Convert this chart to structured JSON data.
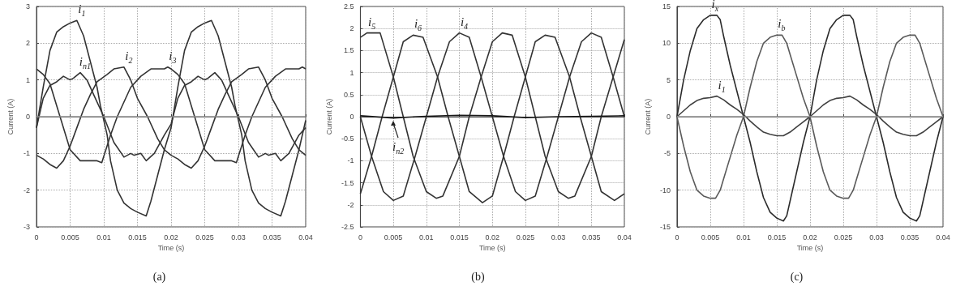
{
  "chart_data": [
    {
      "type": "line",
      "xlabel": "Time (s)",
      "ylabel": "Current (A)",
      "xlim": [
        0,
        0.04
      ],
      "xticks": [
        0,
        0.005,
        0.01,
        0.015,
        0.02,
        0.025,
        0.03,
        0.035,
        0.04
      ],
      "ylim": [
        -3,
        3
      ],
      "yticks": [
        -3,
        -2,
        -1,
        0,
        1,
        2,
        3
      ],
      "grid": true,
      "ref_lines": [
        {
          "axis": "y",
          "value": 0,
          "color": "#8c8c8c"
        }
      ],
      "series": [
        {
          "name": "i$_{1}$",
          "color": "#333333",
          "x": [
            0,
            0.001,
            0.002,
            0.003,
            0.004,
            0.005,
            0.006,
            0.007,
            0.008,
            0.009,
            0.0095,
            0.0105,
            0.011,
            0.012,
            0.013,
            0.014,
            0.015,
            0.0163,
            0.017,
            0.018,
            0.019,
            0.02,
            0.021,
            0.022,
            0.023,
            0.024,
            0.025,
            0.026,
            0.027,
            0.028,
            0.029,
            0.0295,
            0.0305,
            0.031,
            0.032,
            0.033,
            0.034,
            0.035,
            0.0363,
            0.037,
            0.038,
            0.039,
            0.04
          ],
          "values": [
            -0.3,
            0.8,
            1.8,
            2.3,
            2.45,
            2.55,
            2.62,
            2.2,
            1.5,
            0.8,
            0.3,
            -0.5,
            -1.2,
            -2.0,
            -2.35,
            -2.5,
            -2.6,
            -2.7,
            -2.3,
            -1.6,
            -0.9,
            -0.3,
            0.8,
            1.8,
            2.3,
            2.45,
            2.55,
            2.62,
            2.2,
            1.5,
            0.8,
            0.3,
            -0.5,
            -1.2,
            -2.0,
            -2.35,
            -2.5,
            -2.6,
            -2.7,
            -2.3,
            -1.6,
            -0.9,
            -0.1
          ]
        },
        {
          "name": "i$_{n1}$",
          "color": "#333333",
          "x": [
            0,
            0.001,
            0.002,
            0.003,
            0.004,
            0.005,
            0.0055,
            0.0065,
            0.0075,
            0.0085,
            0.01,
            0.0115,
            0.013,
            0.014,
            0.0145,
            0.0155,
            0.0163,
            0.0175,
            0.019,
            0.02,
            0.021,
            0.022,
            0.023,
            0.024,
            0.025,
            0.0255,
            0.0265,
            0.0275,
            0.0285,
            0.03,
            0.0315,
            0.033,
            0.034,
            0.0345,
            0.0355,
            0.0363,
            0.0375,
            0.039,
            0.04
          ],
          "values": [
            -0.3,
            0.5,
            0.85,
            0.95,
            1.1,
            1.0,
            1.05,
            1.2,
            1.0,
            0.6,
            0.0,
            -0.7,
            -1.1,
            -1.0,
            -1.05,
            -1.0,
            -1.2,
            -1.0,
            -0.5,
            -0.2,
            0.5,
            0.85,
            0.95,
            1.1,
            1.0,
            1.05,
            1.2,
            1.0,
            0.6,
            0.0,
            -0.7,
            -1.1,
            -1.0,
            -1.05,
            -1.0,
            -1.2,
            -1.0,
            -0.5,
            -0.3
          ]
        },
        {
          "name": "i$_{2}$",
          "color": "#333333",
          "x": [
            0,
            0.001,
            0.002,
            0.003,
            0.004,
            0.005,
            0.006,
            0.007,
            0.008,
            0.009,
            0.0105,
            0.0115,
            0.013,
            0.014,
            0.015,
            0.0165,
            0.018,
            0.019,
            0.02,
            0.021,
            0.022,
            0.023,
            0.024,
            0.025,
            0.026,
            0.027,
            0.028,
            0.029,
            0.0305,
            0.0315,
            0.033,
            0.034,
            0.035,
            0.0365,
            0.038,
            0.039,
            0.04
          ],
          "values": [
            -1.05,
            -1.15,
            -1.3,
            -1.4,
            -1.2,
            -0.8,
            -0.3,
            0.2,
            0.6,
            0.95,
            1.15,
            1.3,
            1.35,
            1.0,
            0.5,
            0.0,
            -0.6,
            -0.9,
            -1.05,
            -1.15,
            -1.3,
            -1.4,
            -1.2,
            -0.8,
            -0.3,
            0.2,
            0.6,
            0.95,
            1.15,
            1.3,
            1.35,
            1.0,
            0.5,
            0.0,
            -0.6,
            -0.9,
            -1.05
          ]
        },
        {
          "name": "i$_{3}$",
          "color": "#333333",
          "x": [
            0,
            0.001,
            0.002,
            0.0035,
            0.005,
            0.0065,
            0.008,
            0.009,
            0.0097,
            0.011,
            0.012,
            0.014,
            0.0155,
            0.017,
            0.019,
            0.0195,
            0.02,
            0.021,
            0.022,
            0.0235,
            0.025,
            0.0265,
            0.028,
            0.029,
            0.0297,
            0.031,
            0.032,
            0.034,
            0.0355,
            0.037,
            0.039,
            0.0395,
            0.04
          ],
          "values": [
            1.3,
            1.15,
            0.9,
            0.0,
            -0.9,
            -1.2,
            -1.2,
            -1.2,
            -1.25,
            -0.5,
            0.0,
            0.8,
            1.1,
            1.3,
            1.3,
            1.35,
            1.3,
            1.15,
            0.9,
            0.0,
            -0.9,
            -1.2,
            -1.2,
            -1.2,
            -1.25,
            -0.5,
            0.0,
            0.8,
            1.1,
            1.3,
            1.3,
            1.35,
            1.3
          ]
        }
      ],
      "annotations": [
        "(a)"
      ]
    },
    {
      "type": "line",
      "xlabel": "Time (s)",
      "ylabel": "Current (A)",
      "xlim": [
        0,
        0.04
      ],
      "xticks": [
        0,
        0.005,
        0.01,
        0.015,
        0.02,
        0.025,
        0.03,
        0.035,
        0.04
      ],
      "ylim": [
        -2.5,
        2.5
      ],
      "yticks": [
        -2.5,
        -2,
        -1.5,
        -1,
        -0.5,
        0,
        0.5,
        1,
        1.5,
        2,
        2.5
      ],
      "grid": true,
      "series": [
        {
          "name": "i$_{4}$",
          "color": "#333333",
          "x": [
            0,
            0.0017,
            0.0035,
            0.005,
            0.0065,
            0.0083,
            0.01,
            0.0117,
            0.0135,
            0.015,
            0.0165,
            0.0183,
            0.02,
            0.0217,
            0.0235,
            0.025,
            0.0265,
            0.0283,
            0.03,
            0.0317,
            0.0335,
            0.035,
            0.0365,
            0.0383,
            0.04
          ],
          "values": [
            0,
            -0.9,
            -1.7,
            -1.9,
            -1.8,
            -0.9,
            0,
            0.9,
            1.7,
            1.9,
            1.8,
            0.9,
            0,
            -0.9,
            -1.7,
            -1.9,
            -1.8,
            -0.9,
            0,
            0.9,
            1.7,
            1.9,
            1.8,
            0.9,
            0
          ]
        },
        {
          "name": "i$_{5}$",
          "color": "#333333",
          "x": [
            0,
            0.001,
            0.003,
            0.005,
            0.0065,
            0.008,
            0.01,
            0.0115,
            0.0125,
            0.015,
            0.0165,
            0.0183,
            0.02,
            0.0215,
            0.023,
            0.025,
            0.0265,
            0.028,
            0.03,
            0.0315,
            0.0325,
            0.035,
            0.0365,
            0.0383,
            0.04
          ],
          "values": [
            1.8,
            1.9,
            1.9,
            0.9,
            0.0,
            -0.9,
            -1.7,
            -1.85,
            -1.8,
            -0.9,
            0.0,
            0.9,
            1.7,
            1.9,
            1.85,
            0.9,
            0.0,
            -0.9,
            -1.7,
            -1.85,
            -1.8,
            -0.9,
            0.0,
            0.9,
            1.75
          ]
        },
        {
          "name": "i$_{6}$",
          "color": "#333333",
          "x": [
            0,
            0.0017,
            0.0033,
            0.005,
            0.0065,
            0.008,
            0.0095,
            0.0117,
            0.0133,
            0.015,
            0.0165,
            0.0185,
            0.02,
            0.0217,
            0.0233,
            0.025,
            0.0265,
            0.028,
            0.0295,
            0.0317,
            0.0333,
            0.035,
            0.0365,
            0.0385,
            0.04
          ],
          "values": [
            -1.75,
            -0.9,
            0,
            0.9,
            1.7,
            1.85,
            1.8,
            0.9,
            0,
            -0.9,
            -1.7,
            -1.95,
            -1.8,
            -0.9,
            0,
            0.9,
            1.7,
            1.85,
            1.8,
            0.9,
            0,
            -0.9,
            -1.7,
            -1.9,
            -1.75
          ]
        },
        {
          "name": "i$_{n2}$",
          "color": "#1a1a1a",
          "x": [
            0,
            0.005,
            0.01,
            0.015,
            0.02,
            0.025,
            0.03,
            0.035,
            0.04
          ],
          "values": [
            0.02,
            -0.03,
            0.01,
            0.03,
            0.02,
            -0.02,
            0.0,
            0.01,
            0.02
          ]
        }
      ],
      "annotations": [
        "(b)"
      ]
    },
    {
      "type": "line",
      "xlabel": "Time (s)",
      "ylabel": "Current (A)",
      "xlim": [
        0,
        0.04
      ],
      "xticks": [
        0,
        0.005,
        0.01,
        0.015,
        0.02,
        0.025,
        0.03,
        0.035,
        0.04
      ],
      "ylim": [
        -15,
        15
      ],
      "yticks": [
        -15,
        -10,
        -5,
        0,
        5,
        10,
        15
      ],
      "grid": true,
      "ref_lines": [
        {
          "axis": "y",
          "value": 0,
          "color": "#8c8c8c"
        }
      ],
      "series": [
        {
          "name": "i$_{x}$",
          "color": "#2b2b2b",
          "x": [
            0,
            0.001,
            0.002,
            0.003,
            0.004,
            0.005,
            0.006,
            0.0065,
            0.007,
            0.008,
            0.009,
            0.01,
            0.011,
            0.012,
            0.013,
            0.014,
            0.015,
            0.016,
            0.0165,
            0.017,
            0.018,
            0.019,
            0.02,
            0.021,
            0.022,
            0.023,
            0.024,
            0.025,
            0.026,
            0.0265,
            0.027,
            0.028,
            0.029,
            0.03,
            0.031,
            0.032,
            0.033,
            0.034,
            0.035,
            0.036,
            0.0365,
            0.037,
            0.038,
            0.039,
            0.04
          ],
          "values": [
            0,
            5,
            9,
            12,
            13.2,
            13.8,
            13.8,
            13.2,
            11,
            7,
            3.5,
            0,
            -3.5,
            -7.5,
            -11,
            -13,
            -13.8,
            -14.2,
            -13.5,
            -11.5,
            -7.5,
            -3.5,
            0,
            5,
            9,
            12,
            13.2,
            13.8,
            13.8,
            13.2,
            11,
            7,
            3.5,
            0,
            -3.5,
            -7.5,
            -11,
            -13,
            -13.8,
            -14.2,
            -13.5,
            -11.5,
            -7.5,
            -3.5,
            0
          ]
        },
        {
          "name": "i$_{b}$",
          "color": "#5a5a5a",
          "x": [
            0,
            0.001,
            0.002,
            0.003,
            0.004,
            0.005,
            0.0058,
            0.0065,
            0.007,
            0.008,
            0.009,
            0.01,
            0.011,
            0.012,
            0.013,
            0.014,
            0.015,
            0.0158,
            0.0165,
            0.017,
            0.018,
            0.019,
            0.02,
            0.021,
            0.022,
            0.023,
            0.024,
            0.025,
            0.0258,
            0.0265,
            0.027,
            0.028,
            0.029,
            0.03,
            0.031,
            0.032,
            0.033,
            0.034,
            0.035,
            0.0358,
            0.0365,
            0.037,
            0.038,
            0.039,
            0.04
          ],
          "values": [
            0,
            -4,
            -7.5,
            -10,
            -10.8,
            -11.1,
            -11.1,
            -10,
            -8.5,
            -5.5,
            -2.5,
            0,
            4,
            7.5,
            10,
            10.8,
            11.1,
            11.1,
            10,
            8.5,
            5.5,
            2.5,
            0,
            -4,
            -7.5,
            -10,
            -10.8,
            -11.1,
            -11.1,
            -10,
            -8.5,
            -5.5,
            -2.5,
            0,
            4,
            7.5,
            10,
            10.8,
            11.1,
            11.1,
            10,
            8.5,
            5.5,
            2.5,
            0
          ]
        },
        {
          "name": "i$_{1}$",
          "color": "#404040",
          "x": [
            0,
            0.001,
            0.002,
            0.003,
            0.004,
            0.005,
            0.006,
            0.007,
            0.008,
            0.009,
            0.01,
            0.011,
            0.012,
            0.013,
            0.014,
            0.015,
            0.016,
            0.017,
            0.018,
            0.019,
            0.02,
            0.021,
            0.022,
            0.023,
            0.024,
            0.025,
            0.026,
            0.027,
            0.028,
            0.029,
            0.03,
            0.031,
            0.032,
            0.033,
            0.034,
            0.035,
            0.036,
            0.037,
            0.038,
            0.039,
            0.04
          ],
          "values": [
            0,
            0.8,
            1.6,
            2.2,
            2.5,
            2.6,
            2.8,
            2.3,
            1.6,
            1.0,
            0.3,
            -0.6,
            -1.4,
            -2.1,
            -2.4,
            -2.6,
            -2.6,
            -2.1,
            -1.4,
            -0.7,
            0,
            0.8,
            1.6,
            2.2,
            2.5,
            2.6,
            2.8,
            2.3,
            1.6,
            1.0,
            0.3,
            -0.6,
            -1.4,
            -2.1,
            -2.4,
            -2.6,
            -2.6,
            -2.1,
            -1.4,
            -0.7,
            0
          ]
        }
      ],
      "annotations": [
        "(c)"
      ]
    }
  ]
}
